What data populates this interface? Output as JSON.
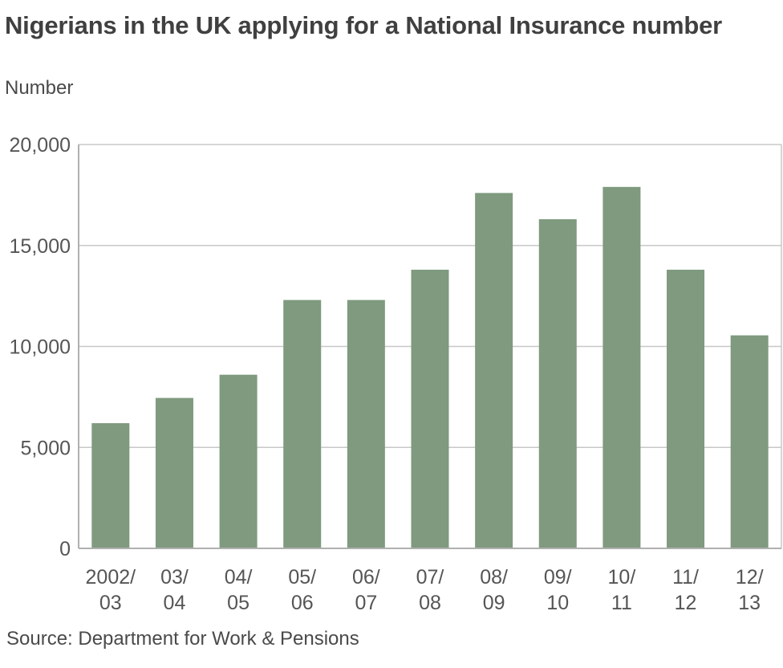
{
  "chart_data": {
    "type": "bar",
    "title": "Nigerians in the UK applying for a National Insurance number",
    "ylabel": "Number",
    "xlabel": "",
    "source": "Source: Department for Work & Pensions",
    "categories": [
      [
        "2002/",
        "03"
      ],
      [
        "03/",
        "04"
      ],
      [
        "04/",
        "05"
      ],
      [
        "05/",
        "06"
      ],
      [
        "06/",
        "07"
      ],
      [
        "07/",
        "08"
      ],
      [
        "08/",
        "09"
      ],
      [
        "09/",
        "10"
      ],
      [
        "10/",
        "11"
      ],
      [
        "11/",
        "12"
      ],
      [
        "12/",
        "13"
      ]
    ],
    "values": [
      6200,
      7450,
      8600,
      12300,
      12300,
      13800,
      17600,
      16300,
      17900,
      13800,
      10550
    ],
    "ylim": [
      0,
      20000
    ],
    "yticks": [
      0,
      5000,
      10000,
      15000,
      20000
    ],
    "ytick_labels": [
      "0",
      "5,000",
      "10,000",
      "15,000",
      "20,000"
    ],
    "grid": true,
    "bar_color": "#7f9a7f",
    "grid_color": "#c8c8c8",
    "axis_color": "#b0b0b0"
  }
}
